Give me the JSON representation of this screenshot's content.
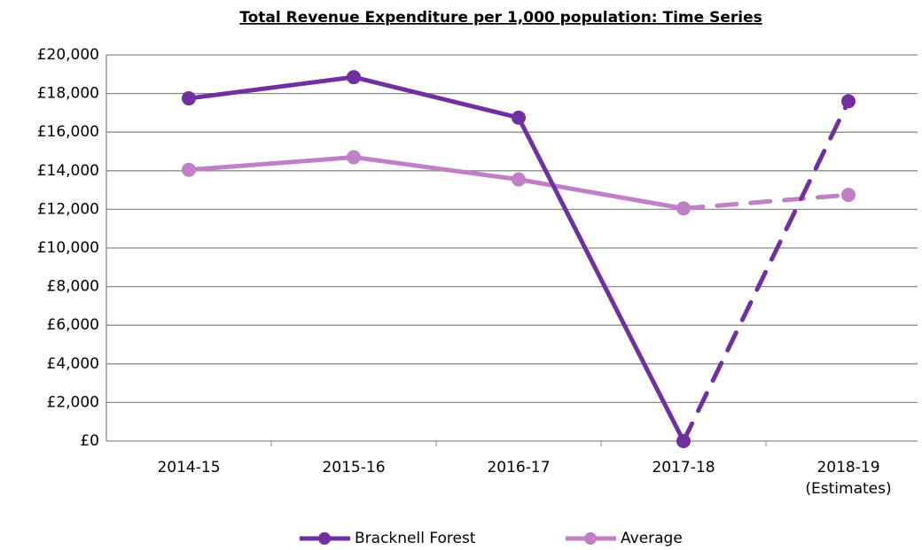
{
  "chart_data": {
    "type": "line",
    "title": "Total Revenue Expenditure per 1,000 population: Time Series",
    "categories": [
      "2014-15",
      "2015-16",
      "2016-17",
      "2017-18",
      "2018-19 (Estimates)"
    ],
    "series": [
      {
        "name": "Bracknell Forest",
        "color": "#7030a0",
        "values": [
          17750,
          18850,
          16750,
          0,
          17600
        ]
      },
      {
        "name": "Average",
        "color": "#c07fc6",
        "values": [
          14050,
          14700,
          13550,
          12050,
          12750
        ]
      }
    ],
    "dashed_from": "2017-18",
    "ylim": [
      0,
      20000
    ],
    "yticks": [
      {
        "value": 0,
        "label": "£0"
      },
      {
        "value": 2000,
        "label": "£2,000"
      },
      {
        "value": 4000,
        "label": "£4,000"
      },
      {
        "value": 6000,
        "label": "£6,000"
      },
      {
        "value": 8000,
        "label": "£8,000"
      },
      {
        "value": 10000,
        "label": "£10,000"
      },
      {
        "value": 12000,
        "label": "£12,000"
      },
      {
        "value": 14000,
        "label": "£14,000"
      },
      {
        "value": 16000,
        "label": "£16,000"
      },
      {
        "value": 18000,
        "label": "£18,000"
      },
      {
        "value": 20000,
        "label": "£20,000"
      }
    ],
    "grid": true,
    "legend": "bottom"
  }
}
